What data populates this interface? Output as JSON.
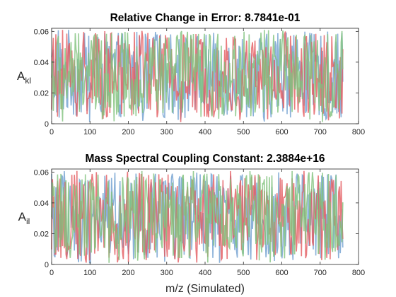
{
  "chart_data": [
    {
      "type": "line",
      "title": "Relative Change in Error: 8.7841e-01",
      "xlabel": "",
      "ylabel": "A",
      "ylabel_sub": "kl",
      "xlim": [
        0,
        800
      ],
      "ylim": [
        0,
        0.062
      ],
      "xticks": [
        0,
        100,
        200,
        300,
        400,
        500,
        600,
        700,
        800
      ],
      "xtick_labels": [
        "0",
        "100",
        "200",
        "300",
        "400",
        "500",
        "600",
        "700",
        "800"
      ],
      "yticks": [
        0,
        0.02,
        0.04,
        0.06
      ],
      "ytick_labels": [
        "0",
        "0.02",
        "0.04",
        "0.06"
      ],
      "grid": false,
      "x_range_of_data": [
        0,
        760
      ],
      "series_colors": [
        "#6f9fd0",
        "#e45a5f",
        "#7fc27c"
      ],
      "series_opacity": 0.8
    },
    {
      "type": "line",
      "title": "Mass Spectral Coupling Constant: 2.3884e+16",
      "xlabel": "m/z (Simulated)",
      "ylabel": "A",
      "ylabel_sub": "il",
      "xlim": [
        0,
        800
      ],
      "ylim": [
        0,
        0.062
      ],
      "xticks": [
        0,
        100,
        200,
        300,
        400,
        500,
        600,
        700,
        800
      ],
      "xtick_labels": [
        "0",
        "100",
        "200",
        "300",
        "400",
        "500",
        "600",
        "700",
        "800"
      ],
      "yticks": [
        0,
        0.02,
        0.04,
        0.06
      ],
      "ytick_labels": [
        "0",
        "0.02",
        "0.04",
        "0.06"
      ],
      "grid": false,
      "x_range_of_data": [
        0,
        760
      ],
      "series_colors": [
        "#6f9fd0",
        "#e45a5f",
        "#7fc27c"
      ],
      "series_opacity": 0.8
    }
  ]
}
